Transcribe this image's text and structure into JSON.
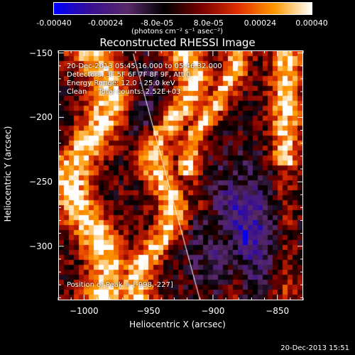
{
  "colorbar": {
    "tick_labels": [
      "-0.00040",
      "-0.00024",
      "-8.0e-05",
      "8.0e-05",
      "0.00024",
      "0.00040"
    ],
    "units": "(photons cm⁻² s⁻¹ asec⁻²)",
    "range": [
      -0.0004,
      0.0004
    ],
    "colors": [
      "#0000ff",
      "#3a1090",
      "#5a2a6a",
      "#000000",
      "#7a0000",
      "#e03000",
      "#ff9a00",
      "#ffffff"
    ]
  },
  "chart_data": {
    "type": "heatmap",
    "title": "Reconstructed RHESSI Image",
    "xlabel": "Heliocentric X (arcsec)",
    "ylabel": "Heliocentric Y (arcsec)",
    "xlim": [
      -1020,
      -830
    ],
    "ylim": [
      -342,
      -148
    ],
    "x_ticks": [
      -1000,
      -950,
      -900,
      -850
    ],
    "y_ticks": [
      -150,
      -200,
      -250,
      -300
    ],
    "annotations": {
      "time": "20-Dec-2013 05:45:16.000 to 05:46:32.000",
      "detectors": "Detectors: 3F 5F 6F 7F 8F 9F, Att 0",
      "energy": "Energy Range: 12.0 - 25.0 keV",
      "clean": "Clean     Total counts: 2.52E+03",
      "peak": "Position of Peak = [-998,-227]"
    },
    "limb_line": {
      "from": [
        -962,
        -150
      ],
      "to": [
        -910,
        -342
      ]
    }
  },
  "timestamp": "20-Dec-2013 15:51"
}
